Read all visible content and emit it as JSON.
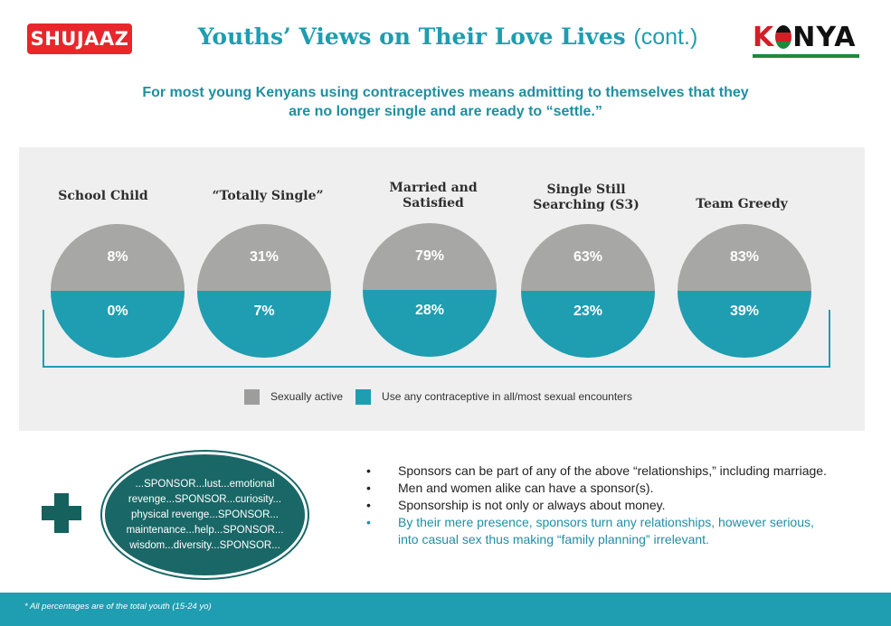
{
  "header": {
    "brand_left": "SHUJAAZ",
    "title": "Youths’ Views on Their Love Lives",
    "title_suffix": "(cont.)",
    "brand_right_k": "K",
    "brand_right_rest": "NYA",
    "subtitle_line1": "For most young Kenyans using contraceptives means admitting to themselves that they",
    "subtitle_line2": "are no longer single and are ready to “settle.”"
  },
  "colors": {
    "sexually_active": "#a7a7a6",
    "contraceptive": "#1f9db1",
    "title": "#1e9db0",
    "bubble": "#1a6767",
    "brand_red": "#e8262b"
  },
  "segments": [
    {
      "label_line1": "School Child",
      "label_line2": "",
      "sexually_active": "8%",
      "contraceptive": "0%"
    },
    {
      "label_line1": "“Totally Single”",
      "label_line2": "",
      "sexually_active": "31%",
      "contraceptive": "7%"
    },
    {
      "label_line1": "Married and",
      "label_line2": "Satisfied",
      "sexually_active": "79%",
      "contraceptive": "28%"
    },
    {
      "label_line1": "Single Still",
      "label_line2": "Searching (S3)",
      "sexually_active": "63%",
      "contraceptive": "23%"
    },
    {
      "label_line1": "Team Greedy",
      "label_line2": "",
      "sexually_active": "83%",
      "contraceptive": "39%"
    }
  ],
  "legend": {
    "sexually_active": "Sexually active",
    "contraceptive": "Use any contraceptive in all/most sexual encounters"
  },
  "bubble_lines": [
    "...SPONSOR...lust...emotional",
    "revenge...SPONSOR...curiosity...",
    "physical revenge...SPONSOR...",
    "maintenance...help...SPONSOR...",
    "wisdom...diversity...SPONSOR..."
  ],
  "bullet_char": "•",
  "bullets": [
    "Sponsors can be part of any of the above “relationships,” including marriage.",
    "Men and women alike can have a sponsor(s).",
    "Sponsorship is not only or always about money.",
    "By their mere presence, sponsors turn any relationships, however serious, into casual sex thus making “family planning” irrelevant."
  ],
  "footer_note": "* All percentages are of the total youth (15-24 yo)"
}
